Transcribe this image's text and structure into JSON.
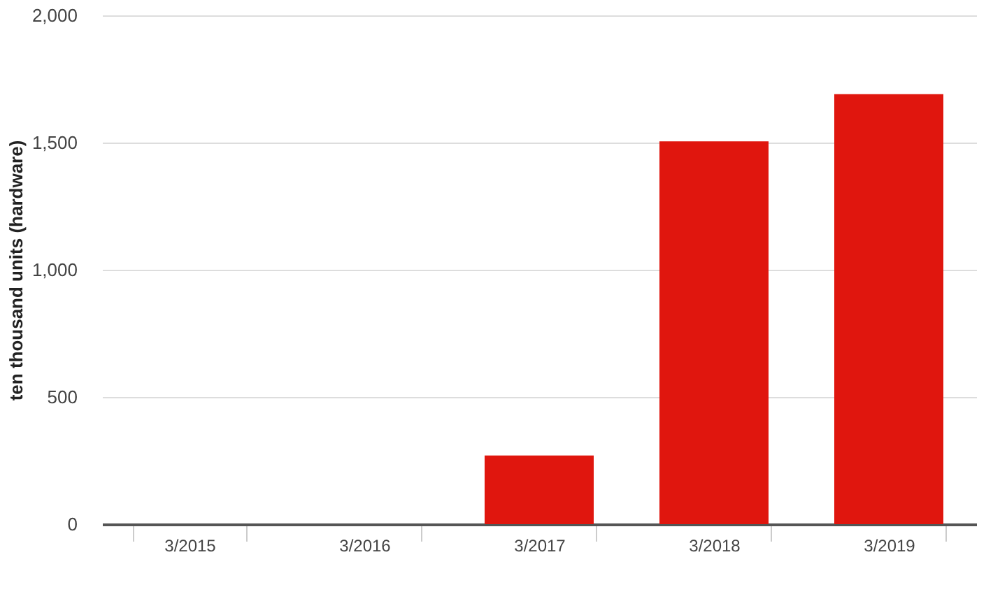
{
  "chart_data": {
    "type": "bar",
    "ylabel": "ten thousand units (hardware)",
    "categories": [
      "3/2015",
      "3/2016",
      "3/2017",
      "3/2018",
      "3/2019"
    ],
    "values": [
      0,
      0,
      270,
      1505,
      1690
    ],
    "color": "#e0160e",
    "ylim": [
      0,
      2000
    ],
    "yticks": [
      {
        "value": 0,
        "label": "0"
      },
      {
        "value": 500,
        "label": "500"
      },
      {
        "value": 1000,
        "label": "1,000"
      },
      {
        "value": 1500,
        "label": "1,500"
      },
      {
        "value": 2000,
        "label": "2,000"
      }
    ],
    "grid": "y"
  }
}
